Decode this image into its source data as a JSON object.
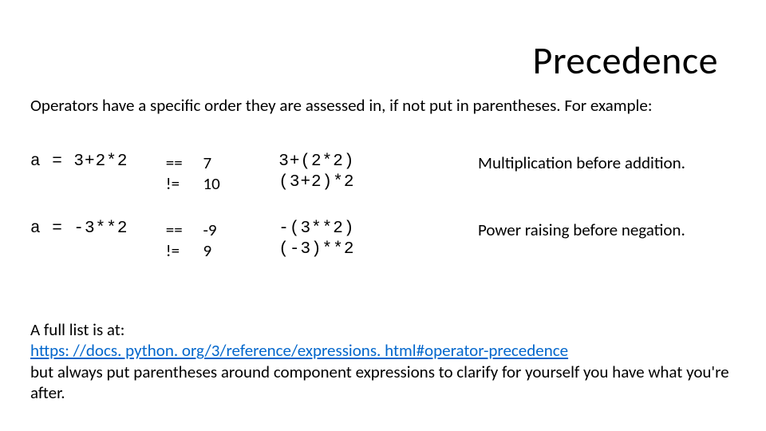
{
  "title": "Precedence",
  "intro": "Operators have a specific order they are assessed in, if not put in parentheses. For example:",
  "ex1": {
    "expr": "a = 3+2*2",
    "op_eq": "==",
    "op_ne": "!=",
    "val_eq": "7",
    "val_ne": "10",
    "paren_eq": "3+(2*2)",
    "paren_ne": "(3+2)*2",
    "note": "Multiplication before addition."
  },
  "ex2": {
    "expr": "a = -3**2",
    "op_eq": "==",
    "op_ne": "!=",
    "val_eq": "-9",
    "val_ne": "9",
    "paren_eq": "-(3**2)",
    "paren_ne": "(-3)**2",
    "note": "Power raising before negation."
  },
  "footer": {
    "lead": "A full list is at:",
    "link": "https: //docs. python. org/3/reference/expressions. html#operator-precedence",
    "tail": "but always put parentheses around component expressions to clarify for yourself you have what you're after."
  },
  "colors": {
    "text": "#000000",
    "link": "#0066cc",
    "background": "#ffffff"
  },
  "fonts": {
    "body": "Calibri",
    "mono": "Courier New",
    "title_size_pt": 36,
    "body_size_pt": 16
  }
}
